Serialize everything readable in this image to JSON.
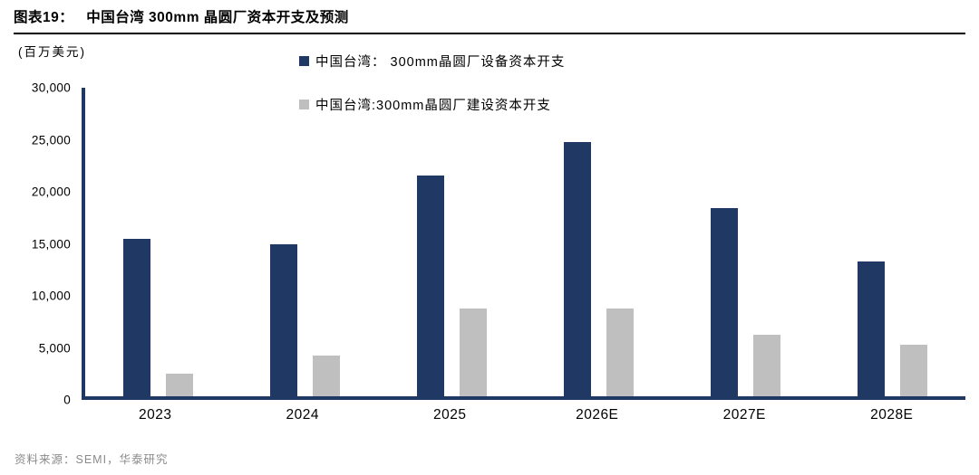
{
  "header": {
    "title_prefix": "图表19：",
    "title": "中国台湾 300mm 晶圆厂资本开支及预测"
  },
  "unit_label": "(百万美元)",
  "chart_data": {
    "type": "bar",
    "title": "中国台湾 300mm 晶圆厂资本开支及预测",
    "ylabel": "百万美元",
    "xlabel": "",
    "categories": [
      "2023",
      "2024",
      "2025",
      "2026E",
      "2027E",
      "2028E"
    ],
    "series": [
      {
        "name": "中国台湾： 300mm晶圆厂设备资本开支",
        "color": "#1f3864",
        "values": [
          15300,
          14800,
          21500,
          24700,
          18300,
          13100
        ]
      },
      {
        "name": "中国台湾:300mm晶圆厂建设资本开支",
        "color": "#bfbfbf",
        "values": [
          2200,
          4000,
          8500,
          8500,
          6000,
          5000
        ]
      }
    ],
    "ylim": [
      0,
      30000
    ],
    "yticks": [
      0,
      5000,
      10000,
      15000,
      20000,
      25000,
      30000
    ],
    "ytick_labels": [
      "0",
      "5,000",
      "10,000",
      "15,000",
      "20,000",
      "25,000",
      "30,000"
    ],
    "grid": false,
    "legend_position": "top-center"
  },
  "footer": {
    "source": "资料来源：SEMI，华泰研究"
  }
}
